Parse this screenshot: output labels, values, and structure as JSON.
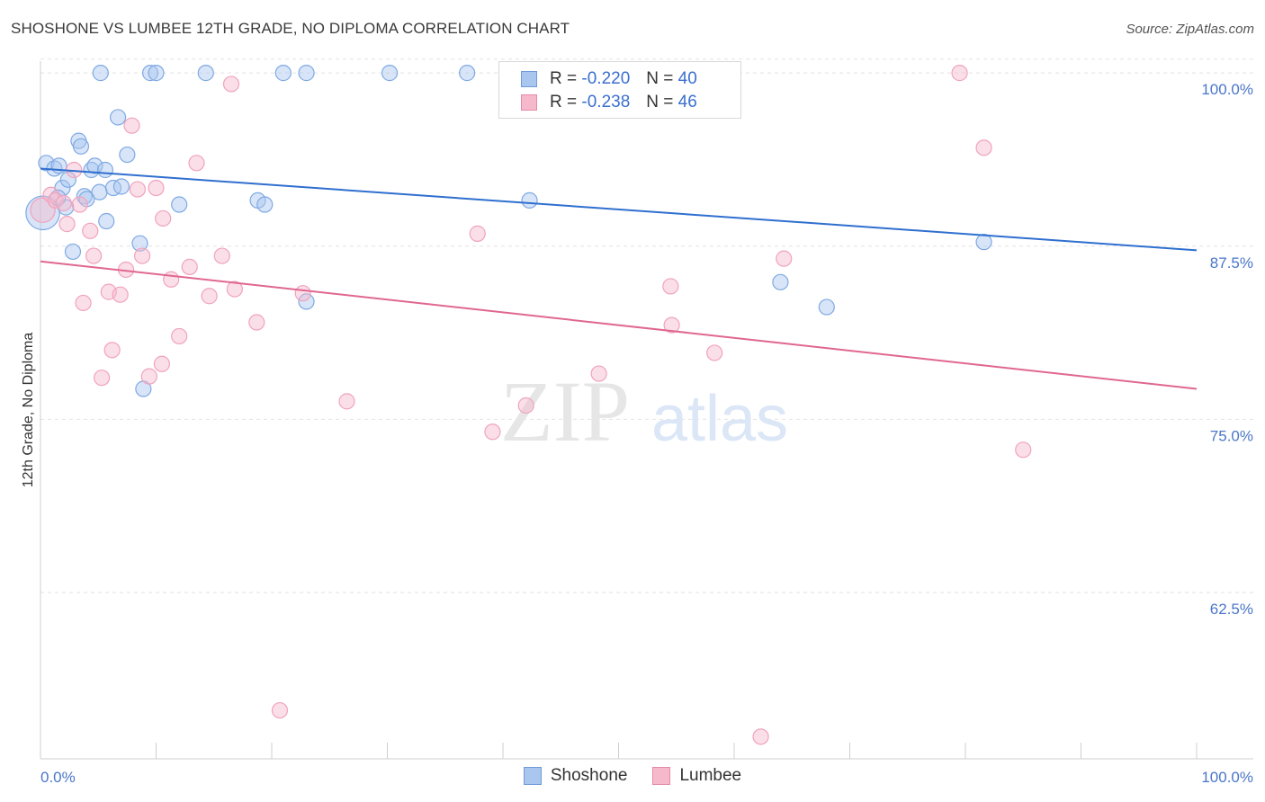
{
  "title": "SHOSHONE VS LUMBEE 12TH GRADE, NO DIPLOMA CORRELATION CHART",
  "source": "Source: ZipAtlas.com",
  "watermark": {
    "zip": "ZIP",
    "atlas": "atlas"
  },
  "legend": {
    "rows": [
      {
        "r_label": "R =",
        "r_value": "-0.220",
        "n_label": "N =",
        "n_value": "40",
        "color": "#a9c6ef",
        "border": "#6f9ad8"
      },
      {
        "r_label": "R =",
        "r_value": "-0.238",
        "n_label": "N =",
        "n_value": "46",
        "color": "#f6b9cc",
        "border": "#e48aa8"
      }
    ]
  },
  "bottom_legend": [
    {
      "label": "Shoshone",
      "color": "#a9c6ef",
      "border": "#6f9ad8"
    },
    {
      "label": "Lumbee",
      "color": "#f6b9cc",
      "border": "#e48aa8"
    }
  ],
  "chart_data": {
    "type": "scatter",
    "title": "SHOSHONE VS LUMBEE 12TH GRADE, NO DIPLOMA CORRELATION CHART",
    "ylabel": "12th Grade, No Diploma",
    "xlabel": "",
    "xlim": [
      0,
      100
    ],
    "ylim": [
      50.5,
      101.5
    ],
    "x_tick_labels": [
      "0.0%",
      "100.0%"
    ],
    "y_ticks": [
      {
        "value": 100.0,
        "label": "100.0%"
      },
      {
        "value": 87.5,
        "label": "87.5%"
      },
      {
        "value": 75.0,
        "label": "75.0%"
      },
      {
        "value": 62.5,
        "label": "62.5%"
      }
    ],
    "grid": true,
    "legend_position": "top-center",
    "series": [
      {
        "name": "Shoshone",
        "color": "#7fa9e3",
        "trend_color": "#2f6fcf",
        "trend": {
          "x": [
            0,
            100
          ],
          "y": [
            93.1,
            87.2
          ]
        },
        "points": [
          {
            "x": 0.2,
            "y": 89.9,
            "s": 2.2
          },
          {
            "x": 0.5,
            "y": 93.5
          },
          {
            "x": 1.2,
            "y": 93.1
          },
          {
            "x": 1.6,
            "y": 93.3
          },
          {
            "x": 1.9,
            "y": 91.7
          },
          {
            "x": 2.2,
            "y": 90.3
          },
          {
            "x": 2.4,
            "y": 92.3
          },
          {
            "x": 2.8,
            "y": 87.1
          },
          {
            "x": 3.3,
            "y": 95.1
          },
          {
            "x": 3.5,
            "y": 94.7
          },
          {
            "x": 3.8,
            "y": 91.1
          },
          {
            "x": 4.0,
            "y": 90.9
          },
          {
            "x": 4.4,
            "y": 93.0
          },
          {
            "x": 4.7,
            "y": 93.3
          },
          {
            "x": 5.1,
            "y": 91.4
          },
          {
            "x": 5.6,
            "y": 93.0
          },
          {
            "x": 5.7,
            "y": 89.3
          },
          {
            "x": 6.3,
            "y": 91.7
          },
          {
            "x": 6.7,
            "y": 96.8
          },
          {
            "x": 7.0,
            "y": 91.8
          },
          {
            "x": 7.5,
            "y": 94.1
          },
          {
            "x": 8.6,
            "y": 87.7
          },
          {
            "x": 8.9,
            "y": 77.2
          },
          {
            "x": 12.0,
            "y": 90.5
          },
          {
            "x": 18.8,
            "y": 90.8
          },
          {
            "x": 19.4,
            "y": 90.5
          },
          {
            "x": 23.0,
            "y": 83.5
          },
          {
            "x": 5.2,
            "y": 100.0
          },
          {
            "x": 9.5,
            "y": 100.0
          },
          {
            "x": 10.0,
            "y": 100.0
          },
          {
            "x": 14.3,
            "y": 100.0
          },
          {
            "x": 21.0,
            "y": 100.0
          },
          {
            "x": 23.0,
            "y": 100.0
          },
          {
            "x": 30.2,
            "y": 100.0
          },
          {
            "x": 36.9,
            "y": 100.0
          },
          {
            "x": 42.3,
            "y": 90.8
          },
          {
            "x": 64.0,
            "y": 84.9
          },
          {
            "x": 68.0,
            "y": 83.1
          },
          {
            "x": 81.6,
            "y": 87.8
          },
          {
            "x": 1.5,
            "y": 91.0
          }
        ]
      },
      {
        "name": "Lumbee",
        "color": "#f3a9c0",
        "trend_color": "#e0678f",
        "trend": {
          "x": [
            0,
            100
          ],
          "y": [
            86.4,
            77.2
          ]
        },
        "points": [
          {
            "x": 0.2,
            "y": 90.1,
            "s": 1.6
          },
          {
            "x": 0.9,
            "y": 91.2
          },
          {
            "x": 1.3,
            "y": 90.8
          },
          {
            "x": 2.3,
            "y": 89.1
          },
          {
            "x": 2.9,
            "y": 93.0
          },
          {
            "x": 3.4,
            "y": 90.5
          },
          {
            "x": 3.7,
            "y": 83.4
          },
          {
            "x": 4.3,
            "y": 88.6
          },
          {
            "x": 4.6,
            "y": 86.8
          },
          {
            "x": 5.3,
            "y": 78.0
          },
          {
            "x": 5.9,
            "y": 84.2
          },
          {
            "x": 6.2,
            "y": 80.0
          },
          {
            "x": 6.9,
            "y": 84.0
          },
          {
            "x": 7.4,
            "y": 85.8
          },
          {
            "x": 7.9,
            "y": 96.2
          },
          {
            "x": 8.4,
            "y": 91.6
          },
          {
            "x": 8.8,
            "y": 86.8
          },
          {
            "x": 9.4,
            "y": 78.1
          },
          {
            "x": 10.0,
            "y": 91.7
          },
          {
            "x": 10.5,
            "y": 79.0
          },
          {
            "x": 10.6,
            "y": 89.5
          },
          {
            "x": 11.3,
            "y": 85.1
          },
          {
            "x": 12.0,
            "y": 81.0
          },
          {
            "x": 12.9,
            "y": 86.0
          },
          {
            "x": 13.5,
            "y": 93.5
          },
          {
            "x": 14.6,
            "y": 83.9
          },
          {
            "x": 15.7,
            "y": 86.8
          },
          {
            "x": 16.5,
            "y": 99.2
          },
          {
            "x": 16.8,
            "y": 84.4
          },
          {
            "x": 18.7,
            "y": 82.0
          },
          {
            "x": 20.7,
            "y": 54.0
          },
          {
            "x": 22.7,
            "y": 84.1
          },
          {
            "x": 26.5,
            "y": 76.3
          },
          {
            "x": 37.8,
            "y": 88.4
          },
          {
            "x": 39.1,
            "y": 74.1
          },
          {
            "x": 42.0,
            "y": 76.0
          },
          {
            "x": 48.3,
            "y": 78.3
          },
          {
            "x": 54.5,
            "y": 84.6
          },
          {
            "x": 54.6,
            "y": 81.8
          },
          {
            "x": 58.3,
            "y": 79.8
          },
          {
            "x": 62.3,
            "y": 52.1
          },
          {
            "x": 64.3,
            "y": 86.6
          },
          {
            "x": 79.5,
            "y": 100.0
          },
          {
            "x": 81.6,
            "y": 94.6
          },
          {
            "x": 85.0,
            "y": 72.8
          },
          {
            "x": 2.0,
            "y": 90.6
          }
        ]
      }
    ]
  }
}
